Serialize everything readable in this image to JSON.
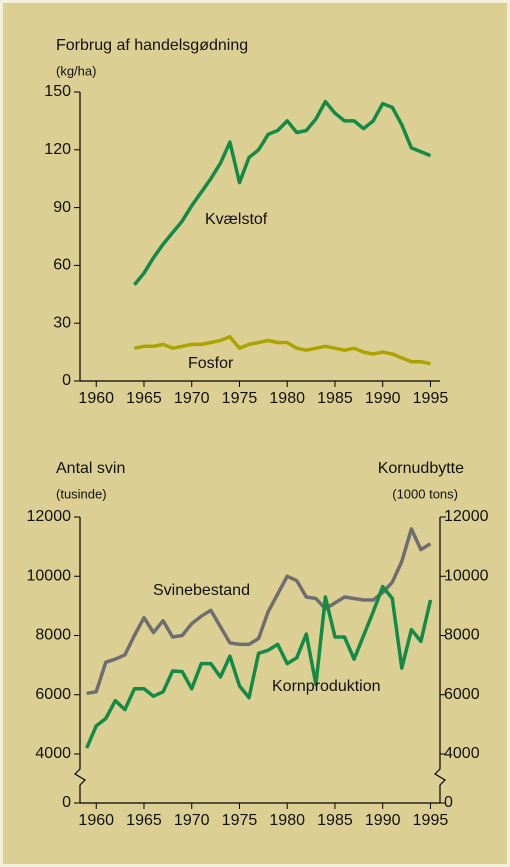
{
  "chart_data": [
    {
      "type": "line",
      "title": "Forbrug af handelsgødning",
      "ylabel": "(kg/ha)",
      "x": [
        1964,
        1965,
        1966,
        1967,
        1968,
        1969,
        1970,
        1971,
        1972,
        1973,
        1974,
        1975,
        1976,
        1977,
        1978,
        1979,
        1980,
        1981,
        1982,
        1983,
        1984,
        1985,
        1986,
        1987,
        1988,
        1989,
        1990,
        1991,
        1992,
        1993,
        1994,
        1995
      ],
      "series": [
        {
          "name": "Kvælstof",
          "color": "#138a45",
          "values": [
            50,
            56,
            64,
            71,
            77,
            83,
            91,
            98,
            105,
            113,
            124,
            103,
            116,
            120,
            128,
            130,
            135,
            129,
            130,
            136,
            145,
            139,
            135,
            135,
            131,
            135,
            144,
            142,
            133,
            121,
            119,
            117
          ]
        },
        {
          "name": "Fosfor",
          "color": "#aaa300",
          "values": [
            17,
            18,
            18,
            19,
            17,
            18,
            19,
            19,
            20,
            21,
            23,
            17,
            19,
            20,
            21,
            20,
            20,
            17,
            16,
            17,
            18,
            17,
            16,
            17,
            15,
            14,
            15,
            14,
            12,
            10,
            10,
            9
          ]
        }
      ],
      "xlim": [
        1958.3,
        1996
      ],
      "xticks": [
        1960,
        1965,
        1970,
        1975,
        1980,
        1985,
        1990,
        1995
      ],
      "ylim": [
        0,
        150
      ],
      "yticks": [
        0,
        30,
        60,
        90,
        120,
        150
      ]
    },
    {
      "type": "line",
      "title": "Antal svin",
      "ylabel": "(tusinde)",
      "y2title": "Kornudbytte",
      "y2label": "(1000 tons)",
      "x": [
        1959,
        1960,
        1961,
        1962,
        1963,
        1964,
        1965,
        1966,
        1967,
        1968,
        1969,
        1970,
        1971,
        1972,
        1973,
        1974,
        1975,
        1976,
        1977,
        1978,
        1979,
        1980,
        1981,
        1982,
        1983,
        1984,
        1985,
        1986,
        1987,
        1988,
        1989,
        1990,
        1991,
        1992,
        1993,
        1994,
        1995
      ],
      "series": [
        {
          "name": "Svinebestand",
          "color": "#6e6e6e",
          "values": [
            6050,
            6100,
            7100,
            7200,
            7350,
            8000,
            8600,
            8100,
            8500,
            7950,
            8000,
            8400,
            8650,
            8850,
            8300,
            7750,
            7700,
            7700,
            7900,
            8800,
            9400,
            10000,
            9850,
            9300,
            9250,
            8900,
            9100,
            9300,
            9250,
            9200,
            9200,
            9450,
            9800,
            10500,
            11600,
            10900,
            11100
          ]
        },
        {
          "name": "Kornproduktion",
          "color": "#138a45",
          "axis": "y2",
          "values": [
            4200,
            4950,
            5200,
            5800,
            5500,
            6200,
            6200,
            5950,
            6100,
            6800,
            6780,
            6200,
            7050,
            7050,
            6600,
            7300,
            6300,
            5900,
            7400,
            7500,
            7700,
            7050,
            7250,
            8050,
            6350,
            9300,
            7950,
            7950,
            7200,
            8000,
            8800,
            9650,
            9250,
            6900,
            8200,
            7800,
            9200
          ]
        }
      ],
      "xlim": [
        1958.3,
        1996
      ],
      "xticks": [
        1960,
        1965,
        1970,
        1975,
        1980,
        1985,
        1990,
        1995
      ],
      "ylim": [
        0,
        12000
      ],
      "yticks": [
        0,
        4000,
        6000,
        8000,
        10000,
        12000
      ],
      "y2lim": [
        0,
        12000
      ],
      "y2ticks": [
        0,
        4000,
        6000,
        8000,
        10000,
        12000
      ],
      "axis_break": true
    }
  ]
}
